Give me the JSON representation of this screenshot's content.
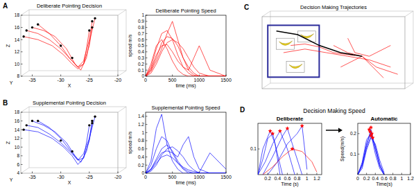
{
  "chart_data": [
    {
      "type": "line3d",
      "panel": "A",
      "title": "Deliberate Pointing Decision",
      "xlabel": "X",
      "ylabel": "Z",
      "depth_label": "Y",
      "xlim": [
        -37,
        -20
      ],
      "xticks": [
        -35,
        -30,
        -25,
        -20
      ],
      "ylim": [
        8,
        18
      ],
      "yticks": [
        8,
        10,
        12,
        14,
        16,
        18
      ],
      "grid": false,
      "series": [
        {
          "type": "line",
          "color": "#ff0000",
          "x": [
            -36,
            -34,
            -32,
            -30,
            -28,
            -27,
            -26,
            -25,
            -24.5
          ],
          "values": [
            15.5,
            15,
            14,
            12.5,
            10.5,
            9.5,
            10.5,
            14,
            17
          ]
        },
        {
          "type": "line",
          "color": "#ff0000",
          "x": [
            -35,
            -33,
            -31,
            -29,
            -27.5,
            -26.5,
            -25.5,
            -24.8,
            -24
          ],
          "values": [
            16,
            15.5,
            14.5,
            12.5,
            10,
            9,
            11,
            14.5,
            17.5
          ]
        },
        {
          "type": "line",
          "color": "#ff0000",
          "x": [
            -36.5,
            -34,
            -31.5,
            -29.5,
            -28,
            -27,
            -26,
            -25.5,
            -25
          ],
          "values": [
            14.5,
            14,
            13,
            11.5,
            10,
            9.2,
            10,
            12.5,
            15.5
          ]
        },
        {
          "type": "line",
          "color": "#ff0000",
          "x": [
            -34,
            -32,
            -30,
            -28.5,
            -27,
            -26,
            -25,
            -24.5
          ],
          "values": [
            16.5,
            15,
            13,
            11,
            9.5,
            10,
            13,
            16
          ]
        },
        {
          "type": "scatter",
          "marker": "circle",
          "color": "#000000",
          "x": [
            -36,
            -35,
            -36.5,
            -34,
            -24.5,
            -24,
            -25,
            -24.5,
            -30,
            -28
          ],
          "values": [
            15.5,
            16,
            14.5,
            16.5,
            17,
            17.5,
            15.5,
            16,
            13,
            11
          ]
        }
      ]
    },
    {
      "type": "line",
      "title": "Deliberate Pointing Speed",
      "xlabel": "time (ms)",
      "ylabel": "speed m/s",
      "x": [
        0,
        100,
        200,
        300,
        400,
        500,
        600,
        700,
        800,
        900,
        1000,
        1200,
        1500
      ],
      "xlim": [
        0,
        1500
      ],
      "xticks": [
        0,
        500,
        1000,
        1500
      ],
      "ylim": [
        0,
        1
      ],
      "yticks": [
        0,
        0.1,
        0.2,
        0.3,
        0.4,
        0.5,
        0.6,
        0.7,
        0.8,
        0.9,
        1
      ],
      "grid": false,
      "series": [
        {
          "color": "#ff0000",
          "values": [
            0,
            0.15,
            0.45,
            0.7,
            0.75,
            0.6,
            0.35,
            0.15,
            0.05,
            0,
            0,
            0,
            0
          ]
        },
        {
          "color": "#ff0000",
          "values": [
            0,
            0.1,
            0.3,
            0.55,
            0.65,
            0.62,
            0.5,
            0.3,
            0.15,
            0.05,
            0,
            0,
            0
          ]
        },
        {
          "color": "#ff0000",
          "values": [
            0,
            0.2,
            0.5,
            0.6,
            0.45,
            0.25,
            0.1,
            0.03,
            0,
            0,
            0,
            0,
            0
          ]
        },
        {
          "color": "#ff0000",
          "values": [
            0,
            0.05,
            0.2,
            0.4,
            0.55,
            0.6,
            0.55,
            0.45,
            0.3,
            0.15,
            0.05,
            0,
            0
          ]
        },
        {
          "color": "#ff0000",
          "values": [
            0,
            0.12,
            0.35,
            0.5,
            0.52,
            0.4,
            0.25,
            0.15,
            0.1,
            0.3,
            0.5,
            0.1,
            0
          ]
        },
        {
          "color": "#ff0000",
          "values": [
            0,
            0.08,
            0.25,
            0.45,
            0.7,
            0.9,
            0.6,
            0.3,
            0.1,
            0.02,
            0,
            0,
            0
          ]
        }
      ]
    },
    {
      "type": "line3d",
      "panel": "B",
      "title": "Supplemental Pointing Decision",
      "xlabel": "X",
      "ylabel": "Z",
      "depth_label": "Y",
      "xlim": [
        -37,
        -20
      ],
      "xticks": [
        -35,
        -30,
        -25,
        -20
      ],
      "ylim": [
        4,
        18
      ],
      "yticks": [
        4,
        6,
        8,
        10,
        12,
        14,
        16,
        18
      ],
      "grid": false,
      "series": [
        {
          "type": "line",
          "color": "#0000ff",
          "x": [
            -36,
            -34,
            -32,
            -30,
            -28,
            -27,
            -26,
            -25,
            -24.5
          ],
          "values": [
            15,
            14.5,
            13,
            11,
            8.5,
            7,
            8.5,
            12,
            16
          ]
        },
        {
          "type": "line",
          "color": "#0000ff",
          "x": [
            -35,
            -33,
            -31,
            -29,
            -27.5,
            -26.5,
            -25.5,
            -24.8,
            -24
          ],
          "values": [
            16,
            15,
            13.5,
            11,
            8,
            6.5,
            9,
            13,
            17
          ]
        },
        {
          "type": "line",
          "color": "#0000ff",
          "x": [
            -36.5,
            -34,
            -31.5,
            -29.5,
            -28,
            -27,
            -26,
            -25.5,
            -25
          ],
          "values": [
            14,
            13.5,
            12,
            10,
            8,
            6,
            7.5,
            11,
            15
          ]
        },
        {
          "type": "line",
          "color": "#0000ff",
          "x": [
            -34,
            -32,
            -30,
            -28.5,
            -27,
            -26,
            -25,
            -24.5
          ],
          "values": [
            16,
            14.5,
            12,
            9.5,
            7,
            7.5,
            11.5,
            15.5
          ]
        },
        {
          "type": "scatter",
          "marker": "circle",
          "color": "#000000",
          "x": [
            -36,
            -35,
            -36.5,
            -34,
            -24.5,
            -24,
            -25,
            -24.5,
            -30,
            -28
          ],
          "values": [
            15,
            16,
            14,
            16,
            16,
            17,
            15,
            15.5,
            11.5,
            9
          ]
        }
      ]
    },
    {
      "type": "line",
      "title": "Supplemental Pointing Speed",
      "xlabel": "time (ms)",
      "ylabel": "speed m/s",
      "x": [
        0,
        100,
        200,
        300,
        400,
        500,
        600,
        700,
        800,
        900,
        1000,
        1200,
        1500
      ],
      "xlim": [
        0,
        1500
      ],
      "xticks": [
        0,
        500,
        1000,
        1500
      ],
      "ylim": [
        0,
        1.5
      ],
      "yticks": [
        0,
        0.2,
        0.4,
        0.6,
        0.8,
        1,
        1.2,
        1.4
      ],
      "grid": false,
      "series": [
        {
          "color": "#0000ff",
          "values": [
            0,
            0.1,
            0.35,
            0.6,
            0.7,
            0.55,
            0.3,
            0.12,
            0.04,
            0,
            0,
            0,
            0
          ]
        },
        {
          "color": "#0000ff",
          "values": [
            0,
            0.2,
            0.6,
            0.9,
            0.8,
            0.5,
            0.25,
            0.1,
            0,
            0,
            0,
            0,
            0
          ]
        },
        {
          "color": "#0000ff",
          "values": [
            0,
            0.05,
            0.2,
            0.45,
            0.6,
            0.65,
            0.55,
            0.4,
            0.2,
            0.08,
            0,
            0,
            0
          ]
        },
        {
          "color": "#0000ff",
          "values": [
            0,
            0.3,
            1.1,
            1.45,
            0.7,
            0.3,
            0.1,
            0,
            0,
            0,
            0,
            0,
            0
          ]
        },
        {
          "color": "#0000ff",
          "values": [
            0,
            0.1,
            0.3,
            0.5,
            0.55,
            0.5,
            0.4,
            0.7,
            0.9,
            0.4,
            0.1,
            0,
            0
          ]
        },
        {
          "color": "#0000ff",
          "values": [
            0,
            0.08,
            0.25,
            0.4,
            0.45,
            0.38,
            0.25,
            0.15,
            0.08,
            0.04,
            0.02,
            0.5,
            0.1
          ]
        }
      ]
    },
    {
      "type": "line3d",
      "panel": "C",
      "title": "Decision Making Trajectories",
      "tick_labels": false,
      "xlim": [
        0,
        10
      ],
      "ylim": [
        0,
        10
      ],
      "grid": false,
      "series": [
        {
          "type": "line",
          "color": "#ff0000",
          "x": [
            1.5,
            3,
            4.5,
            6,
            7.5,
            9
          ],
          "values": [
            5,
            5.5,
            5,
            4.5,
            4,
            3
          ]
        },
        {
          "type": "line",
          "color": "#ff0000",
          "x": [
            5,
            6,
            7,
            8,
            9.5
          ],
          "values": [
            6,
            5,
            4.5,
            3,
            2
          ]
        },
        {
          "type": "line",
          "color": "#ff0000",
          "x": [
            5.5,
            6.5,
            7,
            7.5,
            8.5
          ],
          "values": [
            3,
            4,
            4.5,
            3.5,
            1.5
          ]
        },
        {
          "type": "line",
          "color": "#ff0000",
          "x": [
            6,
            6.5,
            7.5,
            8,
            9
          ],
          "values": [
            7,
            5,
            4.5,
            5,
            6
          ]
        },
        {
          "type": "line",
          "color": "#ff0000",
          "x": [
            2,
            3,
            4,
            5,
            6.5
          ],
          "values": [
            6,
            6.2,
            5.8,
            5,
            4.6
          ]
        },
        {
          "type": "line",
          "color": "#000000",
          "x": [
            1,
            2.5,
            4,
            5.5,
            7
          ],
          "values": [
            8,
            7.5,
            6,
            5,
            4.5
          ]
        }
      ]
    },
    {
      "type": "line",
      "panel": "D",
      "group_title": "Decision Making Speed",
      "title": "Deliberate",
      "xlabel": "Time (s)",
      "xlim": [
        0,
        1.3
      ],
      "xticks": [
        0.2,
        0.4,
        0.6,
        0.8,
        1,
        1.2
      ],
      "ylim": [
        0,
        0.2
      ],
      "yticks": [
        0.1
      ],
      "grid": false,
      "series": [
        {
          "color": "#0000ff",
          "x": [
            0,
            0.1,
            0.2,
            0.3,
            0.4,
            0.5
          ],
          "values": [
            0,
            0.06,
            0.14,
            0.16,
            0.08,
            0
          ]
        },
        {
          "color": "#0000ff",
          "x": [
            0,
            0.15,
            0.3,
            0.45,
            0.6,
            0.75
          ],
          "values": [
            0,
            0.05,
            0.12,
            0.17,
            0.1,
            0
          ]
        },
        {
          "color": "#0000ff",
          "x": [
            0.1,
            0.3,
            0.5,
            0.6,
            0.7,
            0.9
          ],
          "values": [
            0,
            0.07,
            0.15,
            0.18,
            0.12,
            0
          ]
        },
        {
          "color": "#0000ff",
          "x": [
            0.2,
            0.4,
            0.6,
            0.8,
            0.9,
            1
          ],
          "values": [
            0,
            0.05,
            0.12,
            0.16,
            0.19,
            0.02
          ]
        },
        {
          "color": "#ff0000",
          "x": [
            0.1,
            0.3,
            0.5,
            0.7,
            0.9,
            1.1,
            1.2
          ],
          "values": [
            0,
            0.03,
            0.07,
            0.1,
            0.09,
            0.05,
            0.01
          ]
        },
        {
          "color": "#0000ff",
          "x": [
            0,
            0.1,
            0.25,
            0.35,
            0.45
          ],
          "values": [
            0,
            0.1,
            0.17,
            0.12,
            0
          ]
        },
        {
          "type": "scatter",
          "marker": "star",
          "color": "#ff0000",
          "x": [
            0.3,
            0.45,
            0.6,
            0.9,
            0.25,
            0.7
          ],
          "values": [
            0.16,
            0.17,
            0.18,
            0.19,
            0.17,
            0.1
          ]
        }
      ]
    },
    {
      "type": "line",
      "title": "Automatic",
      "xlabel": "Time(s)",
      "ylabel": "Speed(m/s)",
      "x": [
        0,
        0.1,
        0.2,
        0.3,
        0.4,
        0.5,
        0.6
      ],
      "xlim": [
        0,
        1.2
      ],
      "xticks": [
        0,
        0.2,
        0.4,
        0.6,
        0.8,
        1,
        1.2
      ],
      "ylim": [
        0,
        0.25
      ],
      "yticks": [
        0.1,
        0.2
      ],
      "grid": false,
      "series": [
        {
          "color": "#0000ff",
          "values": [
            0,
            0.05,
            0.15,
            0.21,
            0.12,
            0.04,
            0
          ]
        },
        {
          "color": "#0000ff",
          "values": [
            0,
            0.04,
            0.13,
            0.19,
            0.14,
            0.05,
            0
          ]
        },
        {
          "color": "#0000ff",
          "values": [
            0,
            0.06,
            0.17,
            0.2,
            0.1,
            0.03,
            0
          ]
        },
        {
          "color": "#0000ff",
          "values": [
            0,
            0.03,
            0.12,
            0.18,
            0.15,
            0.07,
            0.01
          ]
        },
        {
          "color": "#0000ff",
          "values": [
            0,
            0.05,
            0.14,
            0.22,
            0.13,
            0.05,
            0
          ]
        },
        {
          "type": "scatter",
          "marker": "star",
          "color": "#ff0000",
          "x": [
            0.28,
            0.3,
            0.32,
            0.26,
            0.34,
            0.3
          ],
          "values": [
            0.21,
            0.19,
            0.2,
            0.22,
            0.18,
            0.23
          ]
        }
      ]
    }
  ]
}
